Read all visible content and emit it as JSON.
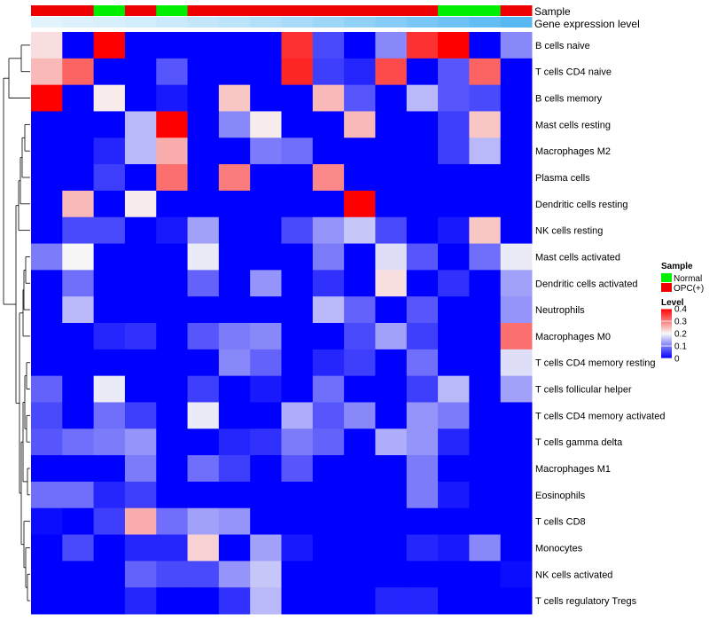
{
  "chart_data": {
    "type": "heatmap",
    "title": "",
    "annotation_titles": {
      "sample": "Sample",
      "level": "Gene expression level"
    },
    "legend": {
      "sample_title": "Sample",
      "sample_items": [
        {
          "label": "Normal",
          "color": "#00ee00"
        },
        {
          "label": "OPC(+)",
          "color": "#ee0000"
        }
      ],
      "level_title": "Level",
      "level_ticks": [
        "0.4",
        "0.3",
        "0.2",
        "0.1",
        "0"
      ],
      "level_tick_values": [
        0.4,
        0.3,
        0.2,
        0.1,
        0
      ]
    },
    "color_scale": {
      "min": 0,
      "mid": 0.2,
      "max": 0.4,
      "low": "#0000ff",
      "middle": "#f7f7f7",
      "high": "#ff0000"
    },
    "sample_groups": [
      "OPC(+)",
      "OPC(+)",
      "Normal",
      "OPC(+)",
      "Normal",
      "OPC(+)",
      "OPC(+)",
      "OPC(+)",
      "OPC(+)",
      "OPC(+)",
      "OPC(+)",
      "OPC(+)",
      "OPC(+)",
      "Normal",
      "Normal",
      "OPC(+)"
    ],
    "sample_colors": {
      "Normal": "#00ee00",
      "OPC(+)": "#ee0000"
    },
    "expression_level_gradient": [
      "#e2f3fc",
      "#ddf1fc",
      "#d8effc",
      "#d2edfb",
      "#cbeafb",
      "#c3e6fb",
      "#bbe3fa",
      "#b2dffa",
      "#a8dbf9",
      "#9dd6f8",
      "#92d1f7",
      "#86ccf6",
      "#7ac7f5",
      "#6ec2f4",
      "#62bdf3",
      "#57b8f2"
    ],
    "rows": [
      "B cells naive",
      "T cells CD4 naive",
      "B cells memory",
      "Mast cells resting",
      "Macrophages M2",
      "Plasma cells",
      "Dendritic cells resting",
      "NK cells resting",
      "Mast cells activated",
      "Dendritic cells activated",
      "Neutrophils",
      "Macrophages M0",
      "T cells CD4 memory resting",
      "T cells follicular helper",
      "T cells CD4 memory activated",
      "T cells gamma delta",
      "Macrophages M1",
      "Eosinophils",
      "T cells CD8",
      "Monocytes",
      "NK cells activated",
      "T cells regulatory  Tregs"
    ],
    "values": [
      [
        0.22,
        0.0,
        0.4,
        0.0,
        0.0,
        0.0,
        0.0,
        0.0,
        0.36,
        0.06,
        0.0,
        0.11,
        0.36,
        0.4,
        0.0,
        0.11
      ],
      [
        0.25,
        0.32,
        0.0,
        0.0,
        0.07,
        0.0,
        0.0,
        0.0,
        0.37,
        0.05,
        0.03,
        0.34,
        0.0,
        0.07,
        0.32,
        0.0
      ],
      [
        0.4,
        0.0,
        0.21,
        0.0,
        0.02,
        0.0,
        0.24,
        0.0,
        0.0,
        0.25,
        0.07,
        0.0,
        0.15,
        0.07,
        0.06,
        0.0
      ],
      [
        0.0,
        0.0,
        0.0,
        0.15,
        0.4,
        0.0,
        0.11,
        0.21,
        0.0,
        0.0,
        0.25,
        0.0,
        0.0,
        0.05,
        0.24,
        0.0
      ],
      [
        0.0,
        0.0,
        0.03,
        0.15,
        0.26,
        0.0,
        0.0,
        0.1,
        0.09,
        0.0,
        0.0,
        0.0,
        0.0,
        0.05,
        0.15,
        0.0
      ],
      [
        0.0,
        0.0,
        0.05,
        0.0,
        0.31,
        0.0,
        0.3,
        0.0,
        0.0,
        0.29,
        0.0,
        0.0,
        0.0,
        0.0,
        0.0,
        0.0
      ],
      [
        0.0,
        0.25,
        0.0,
        0.21,
        0.0,
        0.0,
        0.0,
        0.0,
        0.0,
        0.0,
        0.4,
        0.0,
        0.0,
        0.0,
        0.0,
        0.0
      ],
      [
        0.0,
        0.06,
        0.06,
        0.0,
        0.02,
        0.13,
        0.0,
        0.0,
        0.06,
        0.12,
        0.16,
        0.06,
        0.0,
        0.02,
        0.24,
        0.0
      ],
      [
        0.1,
        0.2,
        0.0,
        0.0,
        0.0,
        0.19,
        0.0,
        0.0,
        0.0,
        0.1,
        0.0,
        0.18,
        0.07,
        0.0,
        0.09,
        0.19
      ],
      [
        0.0,
        0.09,
        0.0,
        0.0,
        0.0,
        0.08,
        0.0,
        0.12,
        0.0,
        0.04,
        0.0,
        0.22,
        0.0,
        0.04,
        0.0,
        0.13
      ],
      [
        0.0,
        0.15,
        0.0,
        0.0,
        0.0,
        0.0,
        0.0,
        0.0,
        0.0,
        0.15,
        0.08,
        0.0,
        0.07,
        0.0,
        0.0,
        0.12
      ],
      [
        0.0,
        0.0,
        0.03,
        0.04,
        0.0,
        0.07,
        0.1,
        0.11,
        0.0,
        0.0,
        0.06,
        0.13,
        0.05,
        0.0,
        0.0,
        0.31
      ],
      [
        0.0,
        0.0,
        0.0,
        0.0,
        0.0,
        0.0,
        0.11,
        0.08,
        0.0,
        0.03,
        0.05,
        0.0,
        0.09,
        0.0,
        0.0,
        0.18
      ],
      [
        0.08,
        0.0,
        0.19,
        0.0,
        0.0,
        0.05,
        0.0,
        0.02,
        0.0,
        0.09,
        0.0,
        0.0,
        0.05,
        0.15,
        0.0,
        0.13
      ],
      [
        0.06,
        0.0,
        0.09,
        0.05,
        0.0,
        0.19,
        0.0,
        0.0,
        0.14,
        0.07,
        0.11,
        0.0,
        0.12,
        0.1,
        0.0,
        0.0
      ],
      [
        0.07,
        0.09,
        0.1,
        0.12,
        0.0,
        0.0,
        0.03,
        0.04,
        0.1,
        0.08,
        0.0,
        0.14,
        0.12,
        0.03,
        0.0,
        0.0
      ],
      [
        0.0,
        0.0,
        0.0,
        0.1,
        0.0,
        0.09,
        0.05,
        0.0,
        0.07,
        0.0,
        0.0,
        0.0,
        0.1,
        0.0,
        0.0,
        0.0
      ],
      [
        0.09,
        0.09,
        0.03,
        0.05,
        0.0,
        0.0,
        0.0,
        0.0,
        0.0,
        0.0,
        0.0,
        0.0,
        0.1,
        0.02,
        0.0,
        0.0
      ],
      [
        0.01,
        0.0,
        0.05,
        0.26,
        0.09,
        0.13,
        0.12,
        0.0,
        0.0,
        0.0,
        0.0,
        0.0,
        0.0,
        0.0,
        0.0,
        0.0
      ],
      [
        0.0,
        0.06,
        0.0,
        0.03,
        0.03,
        0.23,
        0.0,
        0.13,
        0.02,
        0.0,
        0.0,
        0.0,
        0.03,
        0.02,
        0.11,
        0.0
      ],
      [
        0.0,
        0.0,
        0.0,
        0.08,
        0.06,
        0.06,
        0.12,
        0.16,
        0.0,
        0.0,
        0.0,
        0.0,
        0.0,
        0.0,
        0.0,
        0.01
      ],
      [
        0.0,
        0.0,
        0.0,
        0.03,
        0.0,
        0.0,
        0.04,
        0.15,
        0.0,
        0.0,
        0.0,
        0.03,
        0.03,
        0.0,
        0.0,
        0.0
      ]
    ]
  }
}
